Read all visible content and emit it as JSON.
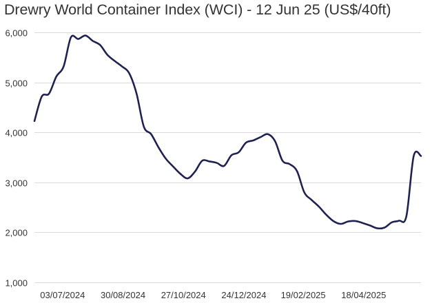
{
  "chart_data": {
    "type": "line",
    "title": "Drewry World Container Index (WCI) - 12 Jun 25 (US$/40ft)",
    "xlabel": "",
    "ylabel": "",
    "ylim": [
      1000,
      6000
    ],
    "y_ticks": [
      1000,
      2000,
      3000,
      4000,
      5000,
      6000
    ],
    "y_tick_labels": [
      "1,000",
      "2,000",
      "3,000",
      "4,000",
      "5,000",
      "6,000"
    ],
    "x_tick_labels": [
      "03/07/2024",
      "30/08/2024",
      "27/10/2024",
      "24/12/2024",
      "19/02/2025",
      "18/04/2025"
    ],
    "x_ticks": [
      "2024-07-03",
      "2024-08-30",
      "2024-10-27",
      "2024-12-24",
      "2025-02-19",
      "2025-04-18"
    ],
    "xlim": [
      "2024-06-06",
      "2025-06-12"
    ],
    "grid": true,
    "legend": "none",
    "line_color": "#1f2150",
    "series": [
      {
        "x": [
          "2024-06-06",
          "2024-06-13",
          "2024-06-20",
          "2024-06-27",
          "2024-07-04",
          "2024-07-11",
          "2024-07-18",
          "2024-07-25",
          "2024-08-01",
          "2024-08-08",
          "2024-08-15",
          "2024-08-22",
          "2024-08-29",
          "2024-09-05",
          "2024-09-12",
          "2024-09-19",
          "2024-09-26",
          "2024-10-03",
          "2024-10-10",
          "2024-10-17",
          "2024-10-24",
          "2024-10-31",
          "2024-11-07",
          "2024-11-14",
          "2024-11-21",
          "2024-11-28",
          "2024-12-05",
          "2024-12-12",
          "2024-12-19",
          "2024-12-26",
          "2025-01-02",
          "2025-01-09",
          "2025-01-16",
          "2025-01-23",
          "2025-01-30",
          "2025-02-06",
          "2025-02-13",
          "2025-02-20",
          "2025-02-27",
          "2025-03-06",
          "2025-03-13",
          "2025-03-20",
          "2025-03-27",
          "2025-04-03",
          "2025-04-10",
          "2025-04-17",
          "2025-04-24",
          "2025-05-01",
          "2025-05-08",
          "2025-05-15",
          "2025-05-22",
          "2025-05-29",
          "2025-06-05",
          "2025-06-12"
        ],
        "values": [
          4226,
          4716,
          4775,
          5117,
          5319,
          5901,
          5868,
          5937,
          5829,
          5747,
          5551,
          5428,
          5319,
          5181,
          4775,
          4114,
          3964,
          3703,
          3476,
          3319,
          3172,
          3079,
          3213,
          3432,
          3418,
          3389,
          3329,
          3541,
          3601,
          3793,
          3838,
          3905,
          3964,
          3821,
          3435,
          3364,
          3225,
          2800,
          2649,
          2515,
          2354,
          2224,
          2169,
          2217,
          2227,
          2187,
          2138,
          2082,
          2095,
          2200,
          2233,
          2324,
          3527,
          3527
        ]
      }
    ]
  }
}
